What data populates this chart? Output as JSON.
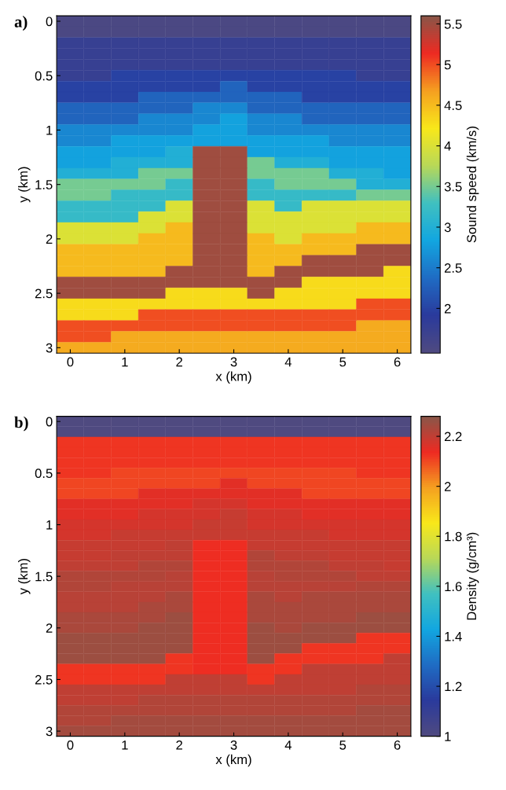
{
  "chart_data": [
    {
      "type": "heatmap",
      "annotations": [
        "a)"
      ],
      "xlabel": "x (km)",
      "ylabel": "y (km)",
      "clabel": "Sound speed (km/s)",
      "colors": [
        "#4f4a80",
        "#2a3a9c",
        "#1f6cc4",
        "#12a6e0",
        "#40c0c0",
        "#b8d858",
        "#f8e81a",
        "#f5a020",
        "#ee2a22",
        "#8a5648"
      ],
      "categories": [
        "0",
        null,
        "1",
        null,
        "2",
        null,
        "3",
        null,
        "4",
        null,
        "5",
        null,
        "6"
      ],
      "y_categories": [
        "0",
        null,
        null,
        null,
        null,
        "0.5",
        null,
        null,
        null,
        null,
        "1",
        null,
        null,
        null,
        null,
        "1.5",
        null,
        null,
        null,
        null,
        "2",
        null,
        null,
        null,
        null,
        "2.5",
        null,
        null,
        null,
        null,
        "3"
      ],
      "clim": [
        1.45,
        5.6
      ],
      "cticks": [
        2,
        2.5,
        3,
        3.5,
        4,
        4.5,
        5,
        5.5
      ],
      "cells": [
        [
          1.5,
          1.5,
          1.5,
          1.5,
          1.5,
          1.5,
          1.5,
          1.5,
          1.5,
          1.5,
          1.5,
          1.5,
          1.5
        ],
        [
          1.5,
          1.5,
          1.5,
          1.5,
          1.5,
          1.5,
          1.5,
          1.5,
          1.5,
          1.5,
          1.5,
          1.5,
          1.5
        ],
        [
          1.75,
          1.75,
          1.75,
          1.75,
          1.75,
          1.75,
          1.75,
          1.75,
          1.75,
          1.75,
          1.75,
          1.75,
          1.75
        ],
        [
          1.75,
          1.75,
          1.75,
          1.75,
          1.75,
          1.75,
          1.75,
          1.75,
          1.75,
          1.75,
          1.75,
          1.75,
          1.75
        ],
        [
          1.75,
          1.75,
          1.75,
          1.75,
          1.75,
          1.75,
          1.75,
          1.75,
          1.75,
          1.75,
          1.75,
          1.75,
          1.75
        ],
        [
          1.75,
          1.75,
          2,
          2,
          2,
          2,
          2,
          2,
          2,
          2,
          2,
          1.75,
          1.75
        ],
        [
          2,
          2,
          2,
          2,
          2,
          2,
          2.3,
          2,
          2,
          2,
          2,
          2,
          2
        ],
        [
          2,
          2,
          2,
          2.3,
          2.3,
          2.3,
          2.3,
          2.3,
          2.3,
          2,
          2,
          2,
          2
        ],
        [
          2.3,
          2.3,
          2.3,
          2.3,
          2.3,
          2.6,
          2.6,
          2.3,
          2.3,
          2.3,
          2.3,
          2.3,
          2.3
        ],
        [
          2.3,
          2.3,
          2.3,
          2.6,
          2.6,
          2.6,
          2.8,
          2.6,
          2.6,
          2.3,
          2.3,
          2.3,
          2.3
        ],
        [
          2.6,
          2.6,
          2.6,
          2.6,
          2.6,
          2.8,
          2.8,
          2.6,
          2.6,
          2.6,
          2.6,
          2.6,
          2.6
        ],
        [
          2.6,
          2.6,
          2.8,
          2.8,
          2.8,
          2.8,
          2.8,
          2.8,
          2.8,
          2.8,
          2.6,
          2.6,
          2.6
        ],
        [
          2.8,
          2.8,
          2.8,
          2.8,
          3,
          5.5,
          5.5,
          2.8,
          2.8,
          2.8,
          2.8,
          2.8,
          2.8
        ],
        [
          2.8,
          2.8,
          3,
          3,
          3,
          5.5,
          5.5,
          3.5,
          3,
          3,
          2.8,
          2.8,
          2.8
        ],
        [
          3,
          3,
          3,
          3.5,
          3.5,
          5.5,
          5.5,
          3.5,
          3.5,
          3.5,
          3,
          3,
          2.8
        ],
        [
          3.5,
          3.5,
          3.5,
          3.5,
          3.2,
          5.5,
          5.5,
          3.2,
          3.5,
          3.5,
          3.5,
          3,
          3
        ],
        [
          3.5,
          3.5,
          3.2,
          3.2,
          3.2,
          5.5,
          5.5,
          3.2,
          3.2,
          3.2,
          3.2,
          3.5,
          3.5
        ],
        [
          3.2,
          3.2,
          3.2,
          3.2,
          4,
          5.5,
          5.5,
          4,
          3.2,
          4,
          4,
          4,
          4
        ],
        [
          3.2,
          3.2,
          3.2,
          4,
          4,
          5.5,
          5.5,
          4,
          4,
          4,
          4,
          4,
          4
        ],
        [
          4,
          4,
          4,
          4,
          4.5,
          5.5,
          5.5,
          4,
          4,
          4,
          4,
          4.5,
          4.5
        ],
        [
          4,
          4,
          4,
          4.5,
          4.5,
          5.5,
          5.5,
          4.5,
          4,
          4.5,
          4.5,
          4.5,
          4.5
        ],
        [
          4.5,
          4.5,
          4.5,
          4.5,
          4.5,
          5.5,
          5.5,
          4.5,
          4.5,
          4.5,
          4.5,
          5.5,
          5.5
        ],
        [
          4.5,
          4.5,
          4.5,
          4.5,
          4.5,
          5.5,
          5.5,
          4.5,
          4.5,
          5.5,
          5.5,
          5.5,
          5.5
        ],
        [
          4.5,
          4.5,
          4.5,
          4.5,
          5.5,
          5.5,
          5.5,
          4.5,
          5.5,
          5.5,
          5.5,
          5.5,
          4.3
        ],
        [
          5.5,
          5.5,
          5.5,
          5.5,
          5.5,
          5.5,
          5.5,
          5.5,
          5.5,
          4.3,
          4.3,
          4.3,
          4.3
        ],
        [
          5.5,
          5.5,
          5.5,
          5.5,
          4.3,
          4.3,
          4.3,
          5.5,
          4.3,
          4.3,
          4.3,
          4.3,
          4.3
        ],
        [
          4.3,
          4.3,
          4.3,
          4.3,
          4.3,
          4.3,
          4.3,
          4.3,
          4.3,
          4.3,
          4.3,
          5,
          5
        ],
        [
          4.3,
          4.3,
          4.3,
          5,
          5,
          5,
          5,
          5,
          5,
          5,
          5,
          5,
          5
        ],
        [
          5,
          5,
          5,
          5,
          5,
          5,
          5,
          5,
          5,
          5,
          5,
          4.6,
          4.6
        ],
        [
          5,
          5,
          4.6,
          4.6,
          4.6,
          4.6,
          4.6,
          4.6,
          4.6,
          4.6,
          4.6,
          4.6,
          4.6
        ],
        [
          4.6,
          4.6,
          4.6,
          4.6,
          4.6,
          4.6,
          4.6,
          4.6,
          4.6,
          4.6,
          4.6,
          4.6,
          4.6
        ]
      ]
    },
    {
      "type": "heatmap",
      "annotations": [
        "b)"
      ],
      "xlabel": "x (km)",
      "ylabel": "y (km)",
      "clabel": "Density (g/cm³)",
      "colors": [
        "#4f4a80",
        "#2a3a9c",
        "#1f6cc4",
        "#12a6e0",
        "#40c0c0",
        "#b8d858",
        "#f8e81a",
        "#f5a020",
        "#ee2a22",
        "#8a5648"
      ],
      "categories": [
        "0",
        null,
        "1",
        null,
        "2",
        null,
        "3",
        null,
        "4",
        null,
        "5",
        null,
        "6"
      ],
      "y_categories": [
        "0",
        null,
        null,
        null,
        null,
        "0.5",
        null,
        null,
        null,
        null,
        "1",
        null,
        null,
        null,
        null,
        "1.5",
        null,
        null,
        null,
        null,
        "2",
        null,
        null,
        null,
        null,
        "2.5",
        null,
        null,
        null,
        null,
        "3"
      ],
      "clim": [
        1,
        2.28
      ],
      "cticks": [
        1,
        1.2,
        1.4,
        1.6,
        1.8,
        2,
        2.2
      ],
      "cells": [
        [
          1,
          1,
          1,
          1,
          1,
          1,
          1,
          1,
          1,
          1,
          1,
          1,
          1
        ],
        [
          1,
          1,
          1,
          1,
          1,
          1,
          1,
          1,
          1,
          1,
          1,
          1,
          1
        ],
        [
          2.12,
          2.12,
          2.12,
          2.12,
          2.12,
          2.12,
          2.12,
          2.12,
          2.12,
          2.12,
          2.12,
          2.12,
          2.12
        ],
        [
          2.12,
          2.12,
          2.12,
          2.12,
          2.12,
          2.12,
          2.12,
          2.12,
          2.12,
          2.12,
          2.12,
          2.12,
          2.12
        ],
        [
          2.12,
          2.12,
          2.12,
          2.12,
          2.12,
          2.12,
          2.12,
          2.12,
          2.12,
          2.12,
          2.12,
          2.12,
          2.12
        ],
        [
          2.12,
          2.12,
          2.1,
          2.1,
          2.1,
          2.1,
          2.1,
          2.1,
          2.1,
          2.1,
          2.1,
          2.12,
          2.12
        ],
        [
          2.1,
          2.1,
          2.1,
          2.1,
          2.1,
          2.1,
          2.15,
          2.1,
          2.1,
          2.1,
          2.1,
          2.1,
          2.1
        ],
        [
          2.1,
          2.1,
          2.1,
          2.15,
          2.15,
          2.15,
          2.15,
          2.15,
          2.15,
          2.1,
          2.1,
          2.1,
          2.1
        ],
        [
          2.15,
          2.15,
          2.15,
          2.15,
          2.15,
          2.17,
          2.17,
          2.15,
          2.15,
          2.15,
          2.15,
          2.15,
          2.15
        ],
        [
          2.15,
          2.15,
          2.15,
          2.17,
          2.17,
          2.17,
          2.19,
          2.17,
          2.17,
          2.15,
          2.15,
          2.15,
          2.15
        ],
        [
          2.17,
          2.17,
          2.17,
          2.17,
          2.17,
          2.19,
          2.19,
          2.17,
          2.17,
          2.17,
          2.17,
          2.17,
          2.17
        ],
        [
          2.17,
          2.17,
          2.19,
          2.19,
          2.19,
          2.19,
          2.19,
          2.19,
          2.19,
          2.19,
          2.17,
          2.17,
          2.17
        ],
        [
          2.19,
          2.19,
          2.19,
          2.19,
          2.2,
          2.13,
          2.13,
          2.19,
          2.19,
          2.19,
          2.19,
          2.19,
          2.19
        ],
        [
          2.19,
          2.19,
          2.2,
          2.2,
          2.2,
          2.13,
          2.13,
          2.22,
          2.2,
          2.2,
          2.19,
          2.19,
          2.19
        ],
        [
          2.2,
          2.2,
          2.2,
          2.22,
          2.22,
          2.13,
          2.13,
          2.22,
          2.22,
          2.22,
          2.2,
          2.2,
          2.19
        ],
        [
          2.22,
          2.22,
          2.22,
          2.22,
          2.21,
          2.13,
          2.13,
          2.21,
          2.22,
          2.22,
          2.22,
          2.2,
          2.2
        ],
        [
          2.22,
          2.22,
          2.21,
          2.21,
          2.21,
          2.13,
          2.13,
          2.21,
          2.21,
          2.21,
          2.21,
          2.22,
          2.22
        ],
        [
          2.21,
          2.21,
          2.21,
          2.21,
          2.23,
          2.13,
          2.13,
          2.23,
          2.21,
          2.23,
          2.23,
          2.23,
          2.23
        ],
        [
          2.21,
          2.21,
          2.21,
          2.23,
          2.23,
          2.13,
          2.13,
          2.23,
          2.23,
          2.23,
          2.23,
          2.23,
          2.23
        ],
        [
          2.23,
          2.23,
          2.23,
          2.23,
          2.25,
          2.13,
          2.13,
          2.23,
          2.23,
          2.23,
          2.23,
          2.25,
          2.25
        ],
        [
          2.23,
          2.23,
          2.23,
          2.25,
          2.25,
          2.13,
          2.13,
          2.25,
          2.23,
          2.25,
          2.25,
          2.25,
          2.25
        ],
        [
          2.25,
          2.25,
          2.25,
          2.25,
          2.25,
          2.13,
          2.13,
          2.25,
          2.25,
          2.25,
          2.25,
          2.12,
          2.12
        ],
        [
          2.25,
          2.25,
          2.25,
          2.25,
          2.25,
          2.13,
          2.13,
          2.25,
          2.25,
          2.12,
          2.12,
          2.12,
          2.12
        ],
        [
          2.25,
          2.25,
          2.25,
          2.25,
          2.12,
          2.13,
          2.13,
          2.25,
          2.12,
          2.12,
          2.12,
          2.12,
          2.2
        ],
        [
          2.12,
          2.12,
          2.12,
          2.12,
          2.12,
          2.13,
          2.13,
          2.12,
          2.12,
          2.2,
          2.2,
          2.2,
          2.2
        ],
        [
          2.12,
          2.12,
          2.12,
          2.12,
          2.2,
          2.2,
          2.2,
          2.12,
          2.2,
          2.2,
          2.2,
          2.2,
          2.2
        ],
        [
          2.2,
          2.2,
          2.2,
          2.2,
          2.2,
          2.2,
          2.2,
          2.2,
          2.2,
          2.2,
          2.2,
          2.22,
          2.22
        ],
        [
          2.2,
          2.2,
          2.2,
          2.22,
          2.22,
          2.22,
          2.22,
          2.22,
          2.22,
          2.22,
          2.22,
          2.22,
          2.22
        ],
        [
          2.22,
          2.22,
          2.22,
          2.22,
          2.22,
          2.22,
          2.22,
          2.22,
          2.22,
          2.22,
          2.22,
          2.24,
          2.24
        ],
        [
          2.22,
          2.22,
          2.24,
          2.24,
          2.24,
          2.24,
          2.24,
          2.24,
          2.24,
          2.24,
          2.24,
          2.24,
          2.24
        ],
        [
          2.24,
          2.24,
          2.24,
          2.24,
          2.24,
          2.24,
          2.24,
          2.24,
          2.24,
          2.24,
          2.24,
          2.24,
          2.24
        ]
      ]
    }
  ]
}
